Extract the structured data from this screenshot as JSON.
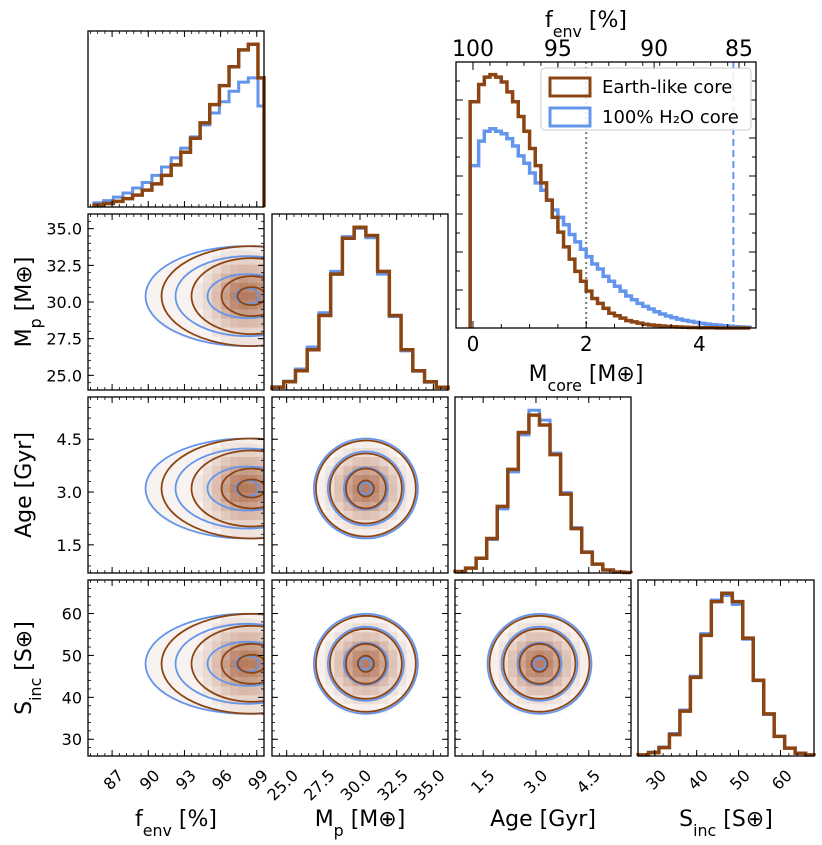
{
  "colors": {
    "earth": "#8b4513",
    "water": "#6495ed",
    "fill": "#a0522d"
  },
  "chart_data": {
    "type": "corner",
    "parameters": [
      {
        "key": "fenv",
        "label_main": "f",
        "label_sub": "env",
        "label_unit": " [%]",
        "range": [
          85,
          99.6
        ],
        "ticks": [
          87,
          90,
          93,
          96,
          99
        ],
        "tick_labels": [
          "87",
          "90",
          "93",
          "96",
          "99"
        ]
      },
      {
        "key": "mp",
        "label_main": "M",
        "label_sub": "p",
        "label_unit": " [M⊕]",
        "range": [
          24,
          36
        ],
        "ticks": [
          25.0,
          27.5,
          30.0,
          32.5,
          35.0
        ],
        "tick_labels": [
          "25.0",
          "27.5",
          "30.0",
          "32.5",
          "35.0"
        ]
      },
      {
        "key": "age",
        "label_main": "Age [Gyr]",
        "label_sub": "",
        "label_unit": "",
        "range": [
          0.7,
          5.7
        ],
        "ticks": [
          1.5,
          3.0,
          4.5
        ],
        "tick_labels": [
          "1.5",
          "3.0",
          "4.5"
        ]
      },
      {
        "key": "sinc",
        "label_main": "S",
        "label_sub": "inc",
        "label_unit": " [S⊕]",
        "range": [
          26,
          68
        ],
        "ticks": [
          30,
          40,
          50,
          60
        ],
        "tick_labels": [
          "30",
          "40",
          "50",
          "60"
        ]
      }
    ],
    "marginals": {
      "fenv": {
        "bin_edges": [
          85.5,
          86.3,
          87.1,
          87.9,
          88.7,
          89.5,
          90.3,
          91.1,
          91.9,
          92.7,
          93.5,
          94.3,
          95.1,
          95.9,
          96.7,
          97.5,
          98.3,
          99.1,
          99.6
        ],
        "earth": [
          0.3,
          0.5,
          0.8,
          1.2,
          1.7,
          2.4,
          3.3,
          4.5,
          6.0,
          7.8,
          9.8,
          12.0,
          14.6,
          17.3,
          20.0,
          22.4,
          23.2,
          18.4
        ],
        "water": [
          0.6,
          0.9,
          1.4,
          2.0,
          2.7,
          3.5,
          4.5,
          5.7,
          7.0,
          8.4,
          10.0,
          11.7,
          13.4,
          15.0,
          16.5,
          17.8,
          18.4,
          14.4
        ]
      },
      "mp": {
        "bin_edges": [
          24.0,
          24.8,
          25.6,
          26.4,
          27.2,
          28.0,
          28.8,
          29.6,
          30.4,
          31.2,
          32.0,
          32.8,
          33.6,
          34.4,
          35.2,
          36.0
        ],
        "earth": [
          0.5,
          1.5,
          3.5,
          7.3,
          13.5,
          21.0,
          27.5,
          29.5,
          28.0,
          21.5,
          13.5,
          7.3,
          3.5,
          1.5,
          0.5
        ],
        "water": [
          0.6,
          1.6,
          3.8,
          7.8,
          14.0,
          21.5,
          27.8,
          29.3,
          27.6,
          21.0,
          13.3,
          7.1,
          3.4,
          1.4,
          0.5
        ]
      },
      "age": {
        "bin_edges": [
          0.7,
          1.0,
          1.3,
          1.6,
          1.9,
          2.2,
          2.5,
          2.8,
          3.1,
          3.4,
          3.7,
          4.0,
          4.3,
          4.6,
          4.9,
          5.2,
          5.5,
          5.7
        ],
        "earth": [
          0.3,
          1.0,
          3.0,
          7.0,
          13.5,
          21.0,
          28.5,
          32.0,
          30.0,
          24.0,
          16.0,
          9.0,
          4.2,
          1.8,
          0.6,
          0.2,
          0.1
        ],
        "water": [
          0.3,
          1.0,
          3.0,
          6.8,
          13.0,
          20.5,
          28.0,
          33.0,
          31.0,
          24.3,
          16.3,
          9.2,
          4.3,
          1.8,
          0.6,
          0.2,
          0.1
        ]
      },
      "sinc": {
        "bin_edges": [
          26,
          28.5,
          31,
          33.5,
          36,
          38.5,
          41,
          43.5,
          46,
          48.5,
          51,
          53.5,
          56,
          58.5,
          61,
          63.5,
          66,
          68
        ],
        "earth": [
          0.2,
          0.6,
          1.5,
          3.8,
          8.0,
          14.0,
          21.5,
          27.5,
          29.0,
          27.5,
          21.0,
          13.5,
          7.5,
          3.5,
          1.4,
          0.5,
          0.2
        ],
        "water": [
          0.2,
          0.7,
          1.6,
          4.0,
          8.2,
          14.2,
          21.8,
          27.8,
          28.6,
          27.0,
          20.8,
          13.4,
          7.4,
          3.5,
          1.4,
          0.5,
          0.2
        ]
      }
    },
    "joint_centers": {
      "fenv": 97.9,
      "mp": 30.4,
      "age": 3.1,
      "sinc": 48.0
    },
    "contour_levels": [
      0.5,
      1.0,
      1.5,
      2.0
    ],
    "core_panel": {
      "xlabel_main": "M",
      "xlabel_sub": "core",
      "xlabel_unit": " [M⊕]",
      "xlim": [
        -0.3,
        5.0
      ],
      "xticks": [
        0,
        2,
        4
      ],
      "xtick_labels": [
        "0",
        "2",
        "4"
      ],
      "top_label_main": "f",
      "top_label_sub": "env",
      "top_label_unit": " [%]",
      "top_ticks_x": [
        0.0,
        1.5,
        3.2,
        4.7
      ],
      "top_tick_labels": [
        "100",
        "95",
        "90",
        "85"
      ],
      "bin_edges": [
        -0.05,
        0.1,
        0.2,
        0.3,
        0.4,
        0.5,
        0.6,
        0.7,
        0.8,
        0.9,
        1.0,
        1.1,
        1.2,
        1.3,
        1.4,
        1.5,
        1.6,
        1.7,
        1.8,
        1.9,
        2.0,
        2.1,
        2.2,
        2.3,
        2.4,
        2.5,
        2.6,
        2.7,
        2.8,
        2.9,
        3.0,
        3.1,
        3.2,
        3.3,
        3.4,
        3.5,
        3.6,
        3.7,
        3.8,
        3.9,
        4.0,
        4.1,
        4.2,
        4.3,
        4.4,
        4.5,
        4.6,
        4.7,
        4.8,
        4.9
      ],
      "earth": [
        0.92,
        0.99,
        1.02,
        1.03,
        1.02,
        1.0,
        0.96,
        0.92,
        0.86,
        0.8,
        0.73,
        0.66,
        0.59,
        0.52,
        0.45,
        0.39,
        0.33,
        0.28,
        0.23,
        0.19,
        0.15,
        0.12,
        0.1,
        0.08,
        0.06,
        0.05,
        0.04,
        0.03,
        0.025,
        0.02,
        0.015,
        0.012,
        0.01,
        0.008,
        0.006,
        0.005,
        0.004,
        0.003,
        0.002,
        0.002,
        0.001,
        0.001,
        0.001,
        0.0,
        0.0,
        0.0,
        0.0,
        0.0,
        0.0
      ],
      "water": [
        0.66,
        0.76,
        0.8,
        0.81,
        0.8,
        0.79,
        0.77,
        0.74,
        0.7,
        0.67,
        0.63,
        0.59,
        0.56,
        0.52,
        0.48,
        0.45,
        0.42,
        0.38,
        0.35,
        0.32,
        0.29,
        0.26,
        0.24,
        0.21,
        0.19,
        0.17,
        0.15,
        0.13,
        0.115,
        0.1,
        0.088,
        0.077,
        0.066,
        0.057,
        0.049,
        0.042,
        0.036,
        0.031,
        0.027,
        0.023,
        0.019,
        0.016,
        0.013,
        0.011,
        0.009,
        0.007,
        0.005,
        0.004,
        0.003
      ],
      "vlines": [
        {
          "x": 2.0,
          "style": "dotted",
          "color": "gray"
        },
        {
          "x": 4.6,
          "style": "dashed",
          "color": "water"
        }
      ],
      "legend": [
        {
          "label": "Earth-like core",
          "series": "earth"
        },
        {
          "label": "100% H₂O core",
          "series": "water"
        }
      ],
      "legend_position": "top-right"
    }
  }
}
